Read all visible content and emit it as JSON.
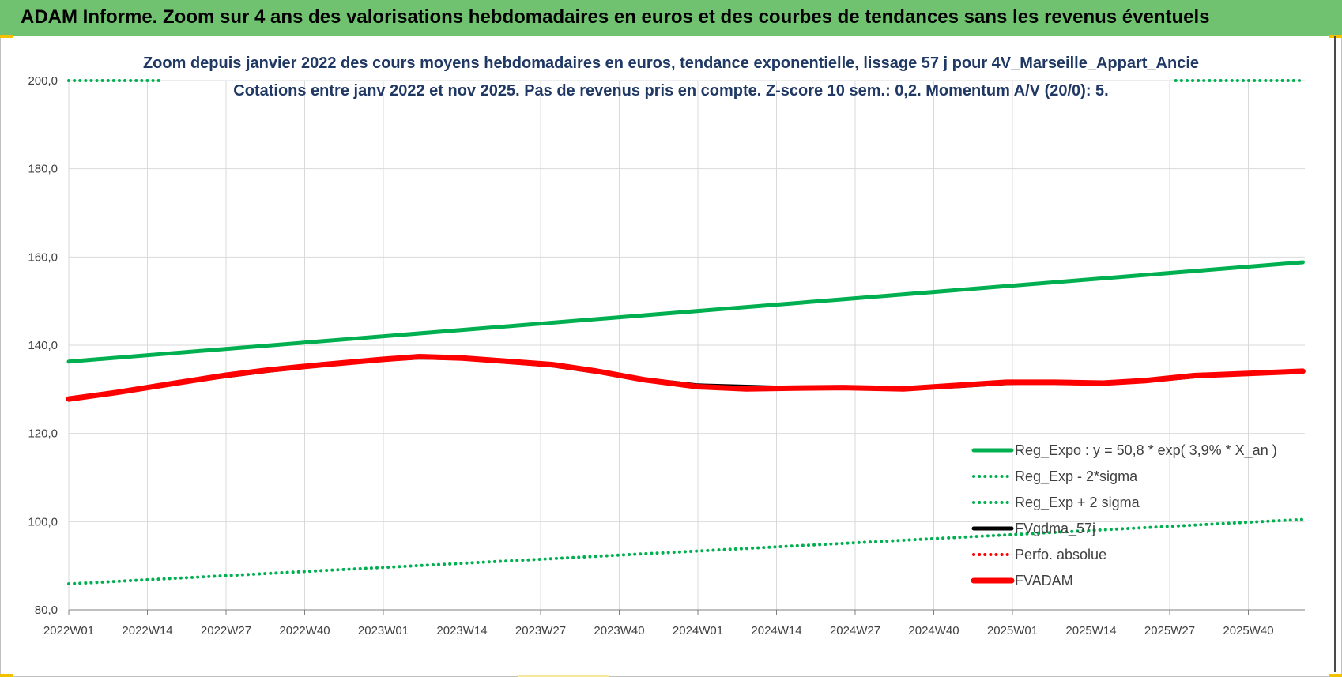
{
  "header": {
    "title": "ADAM Informe. Zoom sur 4 ans des valorisations hebdomadaires en euros et des courbes de tendances sans les revenus éventuels"
  },
  "colors": {
    "header_bg": "#70c270",
    "title_text": "#1f3864",
    "series_green": "#00b050",
    "series_red": "#ff0000",
    "series_black": "#000000",
    "accent_yellow": "#f2c200"
  },
  "chart_data": {
    "type": "line",
    "title": "Zoom depuis janvier 2022 des cours moyens hebdomadaires en euros, tendance exponentielle, lissage 57 j pour 4V_Marseille_Appart_Ancie",
    "subtitle": "Cotations entre janv 2022 et nov 2025. Pas de revenus pris en compte. Z-score 10 sem.: 0,2. Momentum A/V (20/0): 5.",
    "xlabel": "",
    "ylabel": "",
    "ylim": [
      80,
      200
    ],
    "yticks": [
      "80,0",
      "100,0",
      "120,0",
      "140,0",
      "160,0",
      "180,0",
      "200,0"
    ],
    "xticks": [
      "2022W01",
      "2022W14",
      "2022W27",
      "2022W40",
      "2023W01",
      "2023W14",
      "2023W27",
      "2023W40",
      "2024W01",
      "2024W14",
      "2024W27",
      "2024W40",
      "2025W01",
      "2025W14",
      "2025W27",
      "2025W40"
    ],
    "x_range_weeks": [
      0,
      204
    ],
    "grid": true,
    "legend_position": "bottom-right",
    "series": [
      {
        "name": "Reg_Expo : y = 50,8 * exp( 3,9% *  X_an )",
        "style": "solid-thick",
        "color": "#00b050",
        "points": [
          [
            0,
            136.3
          ],
          [
            204,
            158.8
          ]
        ]
      },
      {
        "name": "Reg_Exp - 2*sigma",
        "style": "dotted",
        "color": "#00b050",
        "points": [
          [
            0,
            85.9
          ],
          [
            204,
            100.5
          ]
        ]
      },
      {
        "name": "Reg_Exp + 2 sigma",
        "style": "dotted",
        "color": "#00b050",
        "visible_segments": [
          [
            [
              0,
              200
            ],
            [
              15,
              200
            ]
          ],
          [
            [
              183,
              200
            ],
            [
              204,
              200
            ]
          ]
        ],
        "points": []
      },
      {
        "name": "FVgdma_57j",
        "style": "solid-thick",
        "color": "#000000",
        "points": [
          [
            0,
            127.9
          ],
          [
            8,
            129.3
          ],
          [
            18,
            131.4
          ],
          [
            26,
            133.0
          ],
          [
            33,
            134.2
          ],
          [
            42,
            135.5
          ],
          [
            52,
            136.7
          ],
          [
            58,
            137.2
          ],
          [
            65,
            137.0
          ],
          [
            72,
            136.3
          ],
          [
            80,
            135.4
          ],
          [
            87,
            134.0
          ],
          [
            95,
            132.3
          ],
          [
            104,
            130.9
          ],
          [
            112,
            130.6
          ],
          [
            120,
            130.3
          ],
          [
            128,
            130.3
          ],
          [
            138,
            130.2
          ],
          [
            147,
            130.7
          ],
          [
            155,
            131.4
          ],
          [
            163,
            131.7
          ],
          [
            171,
            131.5
          ],
          [
            178,
            131.9
          ],
          [
            186,
            132.9
          ],
          [
            195,
            133.6
          ],
          [
            204,
            134.1
          ]
        ]
      },
      {
        "name": "Perfo. absolue",
        "style": "dotted",
        "color": "#ff0000",
        "points": []
      },
      {
        "name": "FVADAM",
        "style": "solid-thicker",
        "color": "#ff0000",
        "points": [
          [
            0,
            127.8
          ],
          [
            8,
            129.3
          ],
          [
            18,
            131.5
          ],
          [
            26,
            133.2
          ],
          [
            33,
            134.4
          ],
          [
            42,
            135.6
          ],
          [
            52,
            136.8
          ],
          [
            58,
            137.4
          ],
          [
            65,
            137.1
          ],
          [
            72,
            136.4
          ],
          [
            80,
            135.6
          ],
          [
            87,
            134.2
          ],
          [
            95,
            132.2
          ],
          [
            104,
            130.6
          ],
          [
            112,
            130.1
          ],
          [
            120,
            130.3
          ],
          [
            128,
            130.4
          ],
          [
            138,
            130.1
          ],
          [
            147,
            130.9
          ],
          [
            155,
            131.6
          ],
          [
            163,
            131.6
          ],
          [
            171,
            131.4
          ],
          [
            178,
            132.0
          ],
          [
            186,
            133.1
          ],
          [
            195,
            133.6
          ],
          [
            204,
            134.1
          ]
        ]
      }
    ]
  }
}
